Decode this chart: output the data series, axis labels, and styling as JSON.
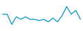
{
  "x": [
    0,
    1,
    2,
    3,
    4,
    5,
    6,
    7,
    8,
    9,
    10,
    11,
    12,
    13,
    14,
    15,
    16,
    17
  ],
  "y": [
    6,
    6,
    2,
    5,
    4,
    5,
    4,
    4,
    3.5,
    4,
    3,
    4.5,
    3,
    5.5,
    9,
    6,
    7.5,
    4
  ],
  "line_color": "#1b9ed4",
  "linewidth": 1.0,
  "background_color": "#ffffff"
}
